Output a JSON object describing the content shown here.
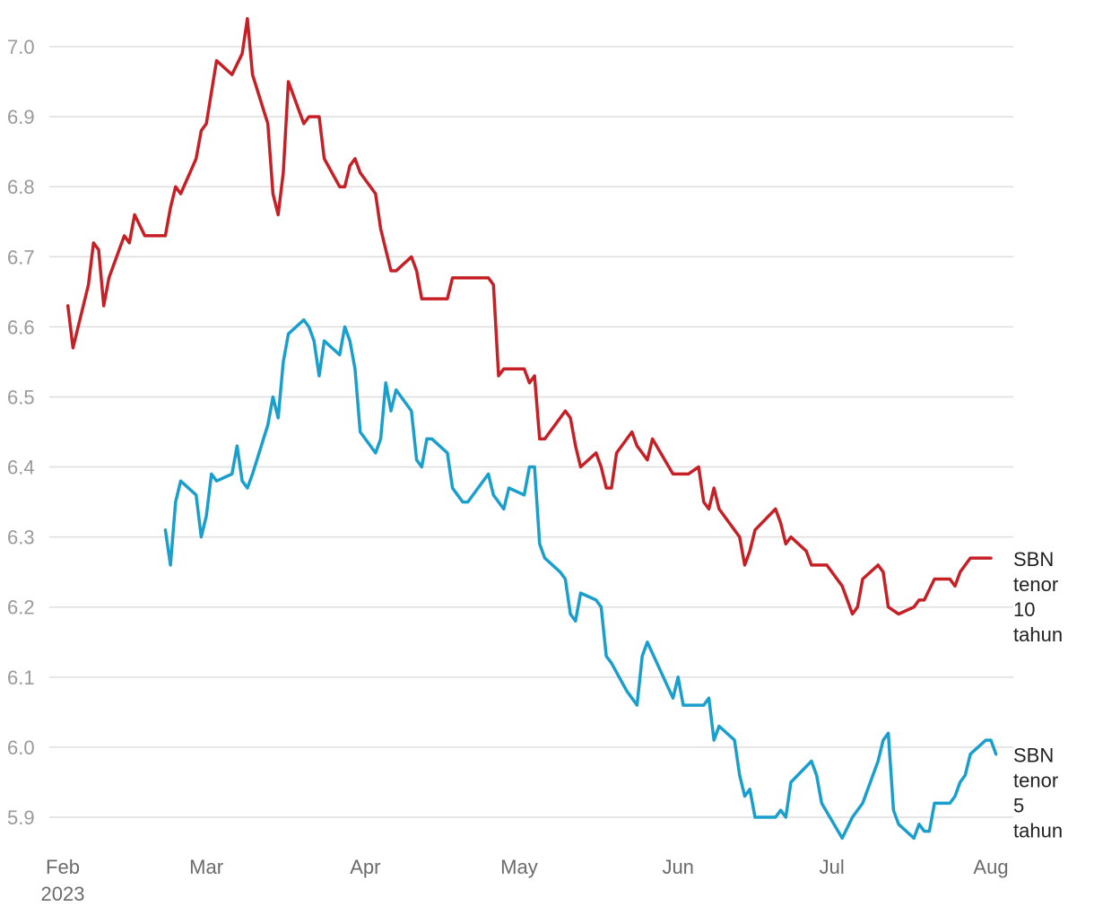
{
  "chart_data": {
    "type": "line",
    "title": "",
    "xlabel": "",
    "ylabel": "",
    "ylim": [
      5.86,
      7.04
    ],
    "yticks": [
      "5.9",
      "6.0",
      "6.1",
      "6.2",
      "6.3",
      "6.4",
      "6.5",
      "6.6",
      "6.7",
      "6.8",
      "6.9",
      "7.0"
    ],
    "xticks": [
      {
        "date": "2023-02-01",
        "label": "Feb",
        "sublabel": "2023"
      },
      {
        "date": "2023-03-01",
        "label": "Mar",
        "sublabel": ""
      },
      {
        "date": "2023-04-01",
        "label": "Apr",
        "sublabel": ""
      },
      {
        "date": "2023-05-01",
        "label": "May",
        "sublabel": ""
      },
      {
        "date": "2023-06-01",
        "label": "Jun",
        "sublabel": ""
      },
      {
        "date": "2023-07-01",
        "label": "Jul",
        "sublabel": ""
      },
      {
        "date": "2023-08-01",
        "label": "Aug",
        "sublabel": ""
      }
    ],
    "grid": true,
    "legend": "direct labels at right end of lines",
    "series": [
      {
        "name": "SBN tenor 10 tahun",
        "label_lines": [
          "SBN",
          "tenor",
          "10",
          "tahun"
        ],
        "color": "#c62026",
        "points": [
          [
            "2023-02-02",
            6.63
          ],
          [
            "2023-02-03",
            6.57
          ],
          [
            "2023-02-06",
            6.66
          ],
          [
            "2023-02-07",
            6.72
          ],
          [
            "2023-02-08",
            6.71
          ],
          [
            "2023-02-09",
            6.63
          ],
          [
            "2023-02-10",
            6.67
          ],
          [
            "2023-02-13",
            6.73
          ],
          [
            "2023-02-14",
            6.72
          ],
          [
            "2023-02-15",
            6.76
          ],
          [
            "2023-02-17",
            6.73
          ],
          [
            "2023-02-21",
            6.73
          ],
          [
            "2023-02-22",
            6.77
          ],
          [
            "2023-02-23",
            6.8
          ],
          [
            "2023-02-24",
            6.79
          ],
          [
            "2023-02-27",
            6.84
          ],
          [
            "2023-02-28",
            6.88
          ],
          [
            "2023-03-01",
            6.89
          ],
          [
            "2023-03-03",
            6.98
          ],
          [
            "2023-03-06",
            6.96
          ],
          [
            "2023-03-08",
            6.99
          ],
          [
            "2023-03-09",
            7.04
          ],
          [
            "2023-03-10",
            6.96
          ],
          [
            "2023-03-13",
            6.89
          ],
          [
            "2023-03-14",
            6.79
          ],
          [
            "2023-03-15",
            6.76
          ],
          [
            "2023-03-16",
            6.82
          ],
          [
            "2023-03-17",
            6.95
          ],
          [
            "2023-03-20",
            6.89
          ],
          [
            "2023-03-21",
            6.9
          ],
          [
            "2023-03-23",
            6.9
          ],
          [
            "2023-03-24",
            6.84
          ],
          [
            "2023-03-27",
            6.8
          ],
          [
            "2023-03-28",
            6.8
          ],
          [
            "2023-03-29",
            6.83
          ],
          [
            "2023-03-30",
            6.84
          ],
          [
            "2023-03-31",
            6.82
          ],
          [
            "2023-04-03",
            6.79
          ],
          [
            "2023-04-04",
            6.74
          ],
          [
            "2023-04-06",
            6.68
          ],
          [
            "2023-04-07",
            6.68
          ],
          [
            "2023-04-10",
            6.7
          ],
          [
            "2023-04-11",
            6.68
          ],
          [
            "2023-04-12",
            6.64
          ],
          [
            "2023-04-13",
            6.64
          ],
          [
            "2023-04-14",
            6.64
          ],
          [
            "2023-04-17",
            6.64
          ],
          [
            "2023-04-18",
            6.67
          ],
          [
            "2023-04-25",
            6.67
          ],
          [
            "2023-04-26",
            6.66
          ],
          [
            "2023-04-27",
            6.53
          ],
          [
            "2023-04-28",
            6.54
          ],
          [
            "2023-05-02",
            6.54
          ],
          [
            "2023-05-03",
            6.52
          ],
          [
            "2023-05-04",
            6.53
          ],
          [
            "2023-05-05",
            6.44
          ],
          [
            "2023-05-06",
            6.44
          ],
          [
            "2023-05-09",
            6.47
          ],
          [
            "2023-05-10",
            6.48
          ],
          [
            "2023-05-11",
            6.47
          ],
          [
            "2023-05-12",
            6.43
          ],
          [
            "2023-05-13",
            6.4
          ],
          [
            "2023-05-16",
            6.42
          ],
          [
            "2023-05-17",
            6.4
          ],
          [
            "2023-05-18",
            6.37
          ],
          [
            "2023-05-19",
            6.37
          ],
          [
            "2023-05-20",
            6.42
          ],
          [
            "2023-05-23",
            6.45
          ],
          [
            "2023-05-24",
            6.43
          ],
          [
            "2023-05-26",
            6.41
          ],
          [
            "2023-05-27",
            6.44
          ],
          [
            "2023-05-31",
            6.39
          ],
          [
            "2023-06-03",
            6.39
          ],
          [
            "2023-06-05",
            6.4
          ],
          [
            "2023-06-06",
            6.35
          ],
          [
            "2023-06-07",
            6.34
          ],
          [
            "2023-06-08",
            6.37
          ],
          [
            "2023-06-09",
            6.34
          ],
          [
            "2023-06-12",
            6.31
          ],
          [
            "2023-06-13",
            6.3
          ],
          [
            "2023-06-14",
            6.26
          ],
          [
            "2023-06-15",
            6.28
          ],
          [
            "2023-06-16",
            6.31
          ],
          [
            "2023-06-20",
            6.34
          ],
          [
            "2023-06-21",
            6.32
          ],
          [
            "2023-06-22",
            6.29
          ],
          [
            "2023-06-23",
            6.3
          ],
          [
            "2023-06-26",
            6.28
          ],
          [
            "2023-06-27",
            6.26
          ],
          [
            "2023-06-30",
            6.26
          ],
          [
            "2023-07-03",
            6.23
          ],
          [
            "2023-07-05",
            6.19
          ],
          [
            "2023-07-06",
            6.2
          ],
          [
            "2023-07-07",
            6.24
          ],
          [
            "2023-07-10",
            6.26
          ],
          [
            "2023-07-11",
            6.25
          ],
          [
            "2023-07-12",
            6.2
          ],
          [
            "2023-07-14",
            6.19
          ],
          [
            "2023-07-17",
            6.2
          ],
          [
            "2023-07-18",
            6.21
          ],
          [
            "2023-07-19",
            6.21
          ],
          [
            "2023-07-21",
            6.24
          ],
          [
            "2023-07-24",
            6.24
          ],
          [
            "2023-07-25",
            6.23
          ],
          [
            "2023-07-26",
            6.25
          ],
          [
            "2023-07-27",
            6.26
          ],
          [
            "2023-07-28",
            6.27
          ],
          [
            "2023-07-31",
            6.27
          ],
          [
            "2023-08-01",
            6.27
          ]
        ]
      },
      {
        "name": "SBN tenor 5 tahun",
        "label_lines": [
          "SBN",
          "tenor",
          "5",
          "tahun"
        ],
        "color": "#1a9fcd",
        "points": [
          [
            "2023-02-21",
            6.31
          ],
          [
            "2023-02-22",
            6.26
          ],
          [
            "2023-02-23",
            6.35
          ],
          [
            "2023-02-24",
            6.38
          ],
          [
            "2023-02-27",
            6.36
          ],
          [
            "2023-02-28",
            6.3
          ],
          [
            "2023-03-01",
            6.33
          ],
          [
            "2023-03-02",
            6.39
          ],
          [
            "2023-03-03",
            6.38
          ],
          [
            "2023-03-06",
            6.39
          ],
          [
            "2023-03-07",
            6.43
          ],
          [
            "2023-03-08",
            6.38
          ],
          [
            "2023-03-09",
            6.37
          ],
          [
            "2023-03-10",
            6.39
          ],
          [
            "2023-03-13",
            6.46
          ],
          [
            "2023-03-14",
            6.5
          ],
          [
            "2023-03-15",
            6.47
          ],
          [
            "2023-03-16",
            6.55
          ],
          [
            "2023-03-17",
            6.59
          ],
          [
            "2023-03-20",
            6.61
          ],
          [
            "2023-03-21",
            6.6
          ],
          [
            "2023-03-22",
            6.58
          ],
          [
            "2023-03-23",
            6.53
          ],
          [
            "2023-03-24",
            6.58
          ],
          [
            "2023-03-27",
            6.56
          ],
          [
            "2023-03-28",
            6.6
          ],
          [
            "2023-03-29",
            6.58
          ],
          [
            "2023-03-30",
            6.54
          ],
          [
            "2023-03-31",
            6.45
          ],
          [
            "2023-04-03",
            6.42
          ],
          [
            "2023-04-04",
            6.44
          ],
          [
            "2023-04-05",
            6.52
          ],
          [
            "2023-04-06",
            6.48
          ],
          [
            "2023-04-07",
            6.51
          ],
          [
            "2023-04-10",
            6.48
          ],
          [
            "2023-04-11",
            6.41
          ],
          [
            "2023-04-12",
            6.4
          ],
          [
            "2023-04-13",
            6.44
          ],
          [
            "2023-04-14",
            6.44
          ],
          [
            "2023-04-17",
            6.42
          ],
          [
            "2023-04-18",
            6.37
          ],
          [
            "2023-04-19",
            6.36
          ],
          [
            "2023-04-20",
            6.35
          ],
          [
            "2023-04-21",
            6.35
          ],
          [
            "2023-04-25",
            6.39
          ],
          [
            "2023-04-26",
            6.36
          ],
          [
            "2023-04-27",
            6.35
          ],
          [
            "2023-04-28",
            6.34
          ],
          [
            "2023-04-29",
            6.37
          ],
          [
            "2023-05-02",
            6.36
          ],
          [
            "2023-05-03",
            6.4
          ],
          [
            "2023-05-04",
            6.4
          ],
          [
            "2023-05-05",
            6.29
          ],
          [
            "2023-05-06",
            6.27
          ],
          [
            "2023-05-09",
            6.25
          ],
          [
            "2023-05-10",
            6.24
          ],
          [
            "2023-05-11",
            6.19
          ],
          [
            "2023-05-12",
            6.18
          ],
          [
            "2023-05-13",
            6.22
          ],
          [
            "2023-05-16",
            6.21
          ],
          [
            "2023-05-17",
            6.2
          ],
          [
            "2023-05-18",
            6.13
          ],
          [
            "2023-05-19",
            6.12
          ],
          [
            "2023-05-22",
            6.08
          ],
          [
            "2023-05-23",
            6.07
          ],
          [
            "2023-05-24",
            6.06
          ],
          [
            "2023-05-25",
            6.13
          ],
          [
            "2023-05-26",
            6.15
          ],
          [
            "2023-05-31",
            6.07
          ],
          [
            "2023-06-01",
            6.1
          ],
          [
            "2023-06-02",
            6.06
          ],
          [
            "2023-06-06",
            6.06
          ],
          [
            "2023-06-07",
            6.07
          ],
          [
            "2023-06-08",
            6.01
          ],
          [
            "2023-06-09",
            6.03
          ],
          [
            "2023-06-12",
            6.01
          ],
          [
            "2023-06-13",
            5.96
          ],
          [
            "2023-06-14",
            5.93
          ],
          [
            "2023-06-15",
            5.94
          ],
          [
            "2023-06-16",
            5.9
          ],
          [
            "2023-06-20",
            5.9
          ],
          [
            "2023-06-21",
            5.91
          ],
          [
            "2023-06-22",
            5.9
          ],
          [
            "2023-06-23",
            5.95
          ],
          [
            "2023-06-27",
            5.98
          ],
          [
            "2023-06-28",
            5.96
          ],
          [
            "2023-06-29",
            5.92
          ],
          [
            "2023-07-03",
            5.87
          ],
          [
            "2023-07-05",
            5.9
          ],
          [
            "2023-07-07",
            5.92
          ],
          [
            "2023-07-10",
            5.98
          ],
          [
            "2023-07-11",
            6.01
          ],
          [
            "2023-07-12",
            6.02
          ],
          [
            "2023-07-13",
            5.91
          ],
          [
            "2023-07-14",
            5.89
          ],
          [
            "2023-07-17",
            5.87
          ],
          [
            "2023-07-18",
            5.89
          ],
          [
            "2023-07-19",
            5.88
          ],
          [
            "2023-07-20",
            5.88
          ],
          [
            "2023-07-21",
            5.92
          ],
          [
            "2023-07-24",
            5.92
          ],
          [
            "2023-07-25",
            5.93
          ],
          [
            "2023-07-26",
            5.95
          ],
          [
            "2023-07-27",
            5.96
          ],
          [
            "2023-07-28",
            5.99
          ],
          [
            "2023-07-31",
            6.01
          ],
          [
            "2023-08-01",
            6.01
          ],
          [
            "2023-08-02",
            5.99
          ]
        ]
      }
    ]
  }
}
